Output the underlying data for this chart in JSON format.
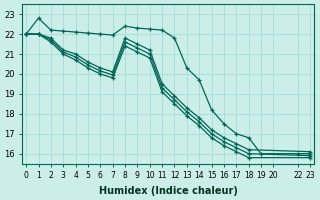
{
  "xlabel": "Humidex (Indice chaleur)",
  "bg_color": "#cceee8",
  "grid_color": "#aadddd",
  "line_color": "#006655",
  "xlim": [
    -0.3,
    23.3
  ],
  "ylim": [
    15.5,
    23.5
  ],
  "yticks": [
    16,
    17,
    18,
    19,
    20,
    21,
    22,
    23
  ],
  "xticks": [
    0,
    1,
    2,
    3,
    4,
    5,
    6,
    7,
    8,
    9,
    10,
    11,
    12,
    13,
    14,
    15,
    16,
    17,
    18,
    19,
    20,
    22,
    23
  ],
  "series": [
    {
      "x": [
        0,
        1,
        2,
        3,
        4,
        5,
        6,
        7,
        8,
        9,
        10,
        11,
        12,
        13,
        14,
        15,
        16,
        17,
        18,
        19,
        22,
        23
      ],
      "y": [
        22.0,
        22.8,
        22.2,
        22.15,
        22.1,
        22.05,
        22.0,
        21.95,
        22.4,
        22.3,
        22.25,
        22.2,
        21.8,
        20.3,
        19.7,
        18.2,
        17.5,
        17.0,
        16.8,
        16.0,
        16.0,
        16.0
      ]
    },
    {
      "x": [
        0,
        1,
        2,
        3,
        4,
        5,
        6,
        7,
        8,
        9,
        10,
        11,
        12,
        13,
        14,
        15,
        16,
        17,
        18,
        23
      ],
      "y": [
        22.0,
        22.0,
        21.8,
        21.2,
        21.0,
        20.6,
        20.3,
        20.1,
        21.8,
        21.5,
        21.2,
        19.5,
        18.9,
        18.3,
        17.8,
        17.2,
        16.8,
        16.5,
        16.2,
        16.1
      ]
    },
    {
      "x": [
        0,
        1,
        2,
        3,
        4,
        5,
        6,
        7,
        8,
        9,
        10,
        11,
        12,
        13,
        14,
        15,
        16,
        17,
        18,
        23
      ],
      "y": [
        22.0,
        22.0,
        21.7,
        21.1,
        20.85,
        20.45,
        20.15,
        19.95,
        21.6,
        21.3,
        21.0,
        19.3,
        18.7,
        18.1,
        17.6,
        17.0,
        16.6,
        16.3,
        16.0,
        15.9
      ]
    },
    {
      "x": [
        0,
        1,
        2,
        3,
        4,
        5,
        6,
        7,
        8,
        9,
        10,
        11,
        12,
        13,
        14,
        15,
        16,
        17,
        18,
        23
      ],
      "y": [
        22.0,
        22.0,
        21.6,
        21.0,
        20.7,
        20.3,
        20.0,
        19.8,
        21.4,
        21.1,
        20.8,
        19.1,
        18.5,
        17.9,
        17.4,
        16.8,
        16.4,
        16.1,
        15.8,
        15.8
      ]
    }
  ]
}
